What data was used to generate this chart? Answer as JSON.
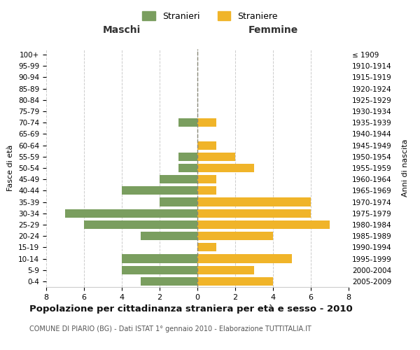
{
  "age_groups": [
    "0-4",
    "5-9",
    "10-14",
    "15-19",
    "20-24",
    "25-29",
    "30-34",
    "35-39",
    "40-44",
    "45-49",
    "50-54",
    "55-59",
    "60-64",
    "65-69",
    "70-74",
    "75-79",
    "80-84",
    "85-89",
    "90-94",
    "95-99",
    "100+"
  ],
  "birth_years": [
    "2005-2009",
    "2000-2004",
    "1995-1999",
    "1990-1994",
    "1985-1989",
    "1980-1984",
    "1975-1979",
    "1970-1974",
    "1965-1969",
    "1960-1964",
    "1955-1959",
    "1950-1954",
    "1945-1949",
    "1940-1944",
    "1935-1939",
    "1930-1934",
    "1925-1929",
    "1920-1924",
    "1915-1919",
    "1910-1914",
    "≤ 1909"
  ],
  "maschi": [
    3,
    4,
    4,
    0,
    3,
    6,
    7,
    2,
    4,
    2,
    1,
    1,
    0,
    0,
    1,
    0,
    0,
    0,
    0,
    0,
    0
  ],
  "femmine": [
    4,
    3,
    5,
    1,
    4,
    7,
    6,
    6,
    1,
    1,
    3,
    2,
    1,
    0,
    1,
    0,
    0,
    0,
    0,
    0,
    0
  ],
  "color_maschi": "#7a9e5f",
  "color_femmine": "#f0b429",
  "title": "Popolazione per cittadinanza straniera per età e sesso - 2010",
  "subtitle": "COMUNE DI PIARIO (BG) - Dati ISTAT 1° gennaio 2010 - Elaborazione TUTTITALIA.IT",
  "xlabel_left": "Maschi",
  "xlabel_right": "Femmine",
  "ylabel_left": "Fasce di età",
  "ylabel_right": "Anni di nascita",
  "legend_maschi": "Stranieri",
  "legend_femmine": "Straniere",
  "xlim": 8,
  "background_color": "#ffffff",
  "grid_color": "#cccccc"
}
